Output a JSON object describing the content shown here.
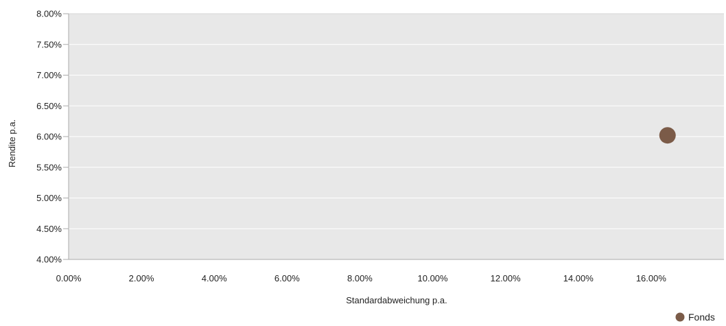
{
  "chart_data": {
    "type": "scatter",
    "xlabel": "Standardabweichung p.a.",
    "ylabel": "Rendite p.a.",
    "xlim": [
      0,
      18
    ],
    "ylim": [
      4,
      8
    ],
    "xticks": [
      0,
      2,
      4,
      6,
      8,
      10,
      12,
      14,
      16
    ],
    "yticks": [
      4,
      4.5,
      5,
      5.5,
      6,
      6.5,
      7,
      7.5,
      8
    ],
    "x_tick_labels": [
      "0.00%",
      "2.00%",
      "4.00%",
      "6.00%",
      "8.00%",
      "10.00%",
      "12.00%",
      "14.00%",
      "16.00%"
    ],
    "y_tick_labels": [
      "4.00%",
      "4.50%",
      "5.00%",
      "5.50%",
      "6.00%",
      "6.50%",
      "7.00%",
      "7.50%",
      "8.00%"
    ],
    "grid": true,
    "legend_position": "bottom-right",
    "series": [
      {
        "name": "Fonds",
        "color": "#7b5b48",
        "points": [
          {
            "x": 16.45,
            "y": 6.02
          }
        ]
      }
    ]
  },
  "colors": {
    "plot_background": "#e8e8e8",
    "grid": "#ffffff",
    "axis": "#aaaaaa"
  }
}
